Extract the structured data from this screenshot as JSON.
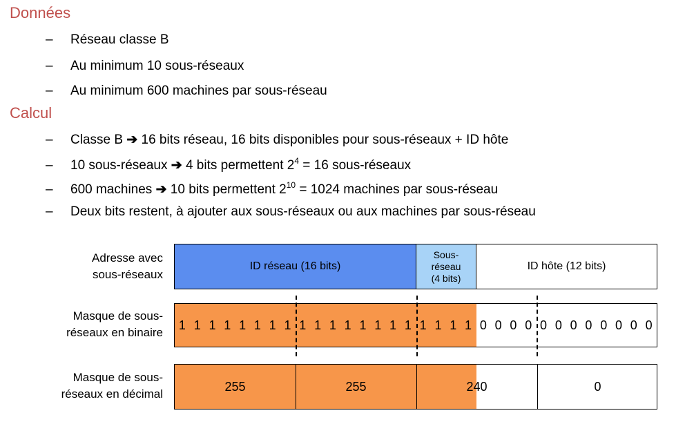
{
  "sections": {
    "donnees_title": "Données",
    "donnees_items": [
      "Réseau classe B",
      "Au minimum 10 sous-réseaux",
      "Au minimum 600 machines par sous-réseau"
    ],
    "calcul_title": "Calcul",
    "calcul_items": [
      {
        "before": "Classe B",
        "after": "16 bits réseau, 16 bits disponibles pour sous-réseaux + ID hôte"
      },
      {
        "before": "10 sous-réseaux",
        "after": "4 bits permettent 2",
        "sup": "4",
        "tail": " = 16 sous-réseaux"
      },
      {
        "before": "600 machines",
        "after": "10 bits permettent 2",
        "sup": "10",
        "tail": " = 1024 machines par sous-réseau"
      },
      {
        "text": "Deux bits restent, à ajouter aux sous-réseaux ou aux machines par sous-réseau"
      }
    ],
    "dash": "–",
    "arrow": "➔"
  },
  "diagram": {
    "row1_label_line1": "Adresse avec",
    "row1_label_line2": "sous-réseaux",
    "row1_net": "ID réseau (16 bits)",
    "row1_sub_line1": "Sous-",
    "row1_sub_line2": "réseau",
    "row1_sub_line3": "(4 bits)",
    "row1_host": "ID hôte (12 bits)",
    "row2_label_line1": "Masque de sous-",
    "row2_label_line2": "réseaux en binaire",
    "row2_bits": "11111111111111111111000000000000",
    "row3_label_line1": "Masque de sous-",
    "row3_label_line2": "réseaux en décimal",
    "row3_values": [
      "255",
      "255",
      "240",
      "0"
    ],
    "colors": {
      "network_blue": "#5b8def",
      "subnet_lightblue": "#a8d3f7",
      "mask_orange": "#f7964a"
    }
  }
}
